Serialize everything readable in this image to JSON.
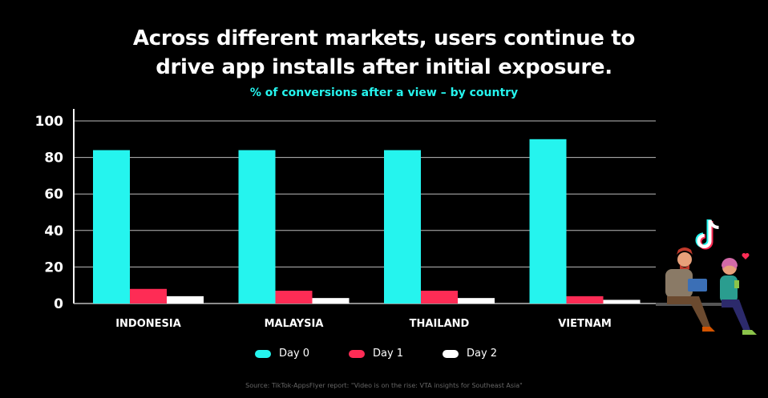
{
  "title_line1": "Across different markets, users continue to",
  "title_line2": "drive app installs after initial exposure.",
  "subtitle": "% of conversions after a view – by country",
  "source": "Source: TikTok-AppsFlyer report: \"Video is on the rise: VTA insights for Southeast Asia\"",
  "colors": {
    "day0": "#25f4ee",
    "day1": "#fe2c55",
    "day2": "#ffffff",
    "background": "#000000"
  },
  "chart_data": {
    "type": "bar",
    "categories": [
      "INDONESIA",
      "MALAYSIA",
      "THAILAND",
      "VIETNAM"
    ],
    "series": [
      {
        "name": "Day 0",
        "values": [
          84,
          84,
          84,
          90
        ]
      },
      {
        "name": "Day 1",
        "values": [
          8,
          7,
          7,
          4
        ]
      },
      {
        "name": "Day 2",
        "values": [
          4,
          3,
          3,
          2
        ]
      }
    ],
    "ylim": [
      0,
      100
    ],
    "yticks": [
      0,
      20,
      40,
      60,
      80,
      100
    ],
    "grid": true,
    "legend_position": "bottom"
  }
}
